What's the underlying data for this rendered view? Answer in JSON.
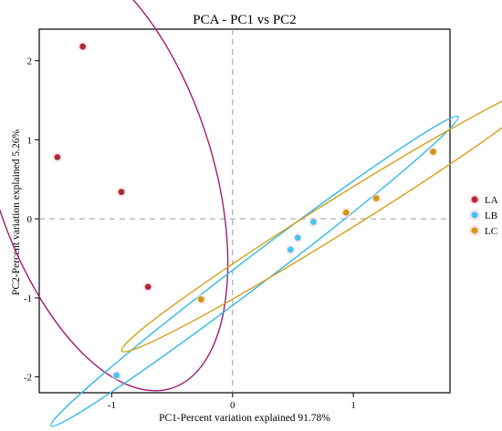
{
  "chart_data": {
    "type": "scatter",
    "title": "PCA - PC1 vs PC2",
    "xlabel": "PC1-Percent variation explained 91.78%",
    "ylabel": "PC2-Percent variation explained 5.26%",
    "xlim": [
      -1.6,
      1.8
    ],
    "ylim": [
      -2.2,
      2.4
    ],
    "x_ticks": [
      -1,
      0,
      1
    ],
    "y_ticks": [
      -2,
      -1,
      0,
      1,
      2
    ],
    "reference_lines": {
      "x": 0,
      "y": 0
    },
    "grid": false,
    "legend_position": "right",
    "series": [
      {
        "name": "LA",
        "color": "#b22a3a",
        "ellipse_color": "#9e1f76",
        "points": [
          {
            "x": -1.24,
            "y": 2.18
          },
          {
            "x": -1.45,
            "y": 0.78
          },
          {
            "x": -0.92,
            "y": 0.34
          },
          {
            "x": -0.7,
            "y": -0.86
          }
        ]
      },
      {
        "name": "LB",
        "color": "#42c8f0",
        "ellipse_color": "#2fb8ea",
        "points": [
          {
            "x": -0.96,
            "y": -1.98
          },
          {
            "x": 0.48,
            "y": -0.39
          },
          {
            "x": 0.54,
            "y": -0.24
          },
          {
            "x": 0.67,
            "y": -0.04
          }
        ]
      },
      {
        "name": "LC",
        "color": "#cc9b12",
        "ellipse_color": "#d4a017",
        "points": [
          {
            "x": -0.26,
            "y": -1.02
          },
          {
            "x": 0.94,
            "y": 0.08
          },
          {
            "x": 1.19,
            "y": 0.26
          },
          {
            "x": 1.66,
            "y": 0.85
          }
        ]
      }
    ]
  }
}
